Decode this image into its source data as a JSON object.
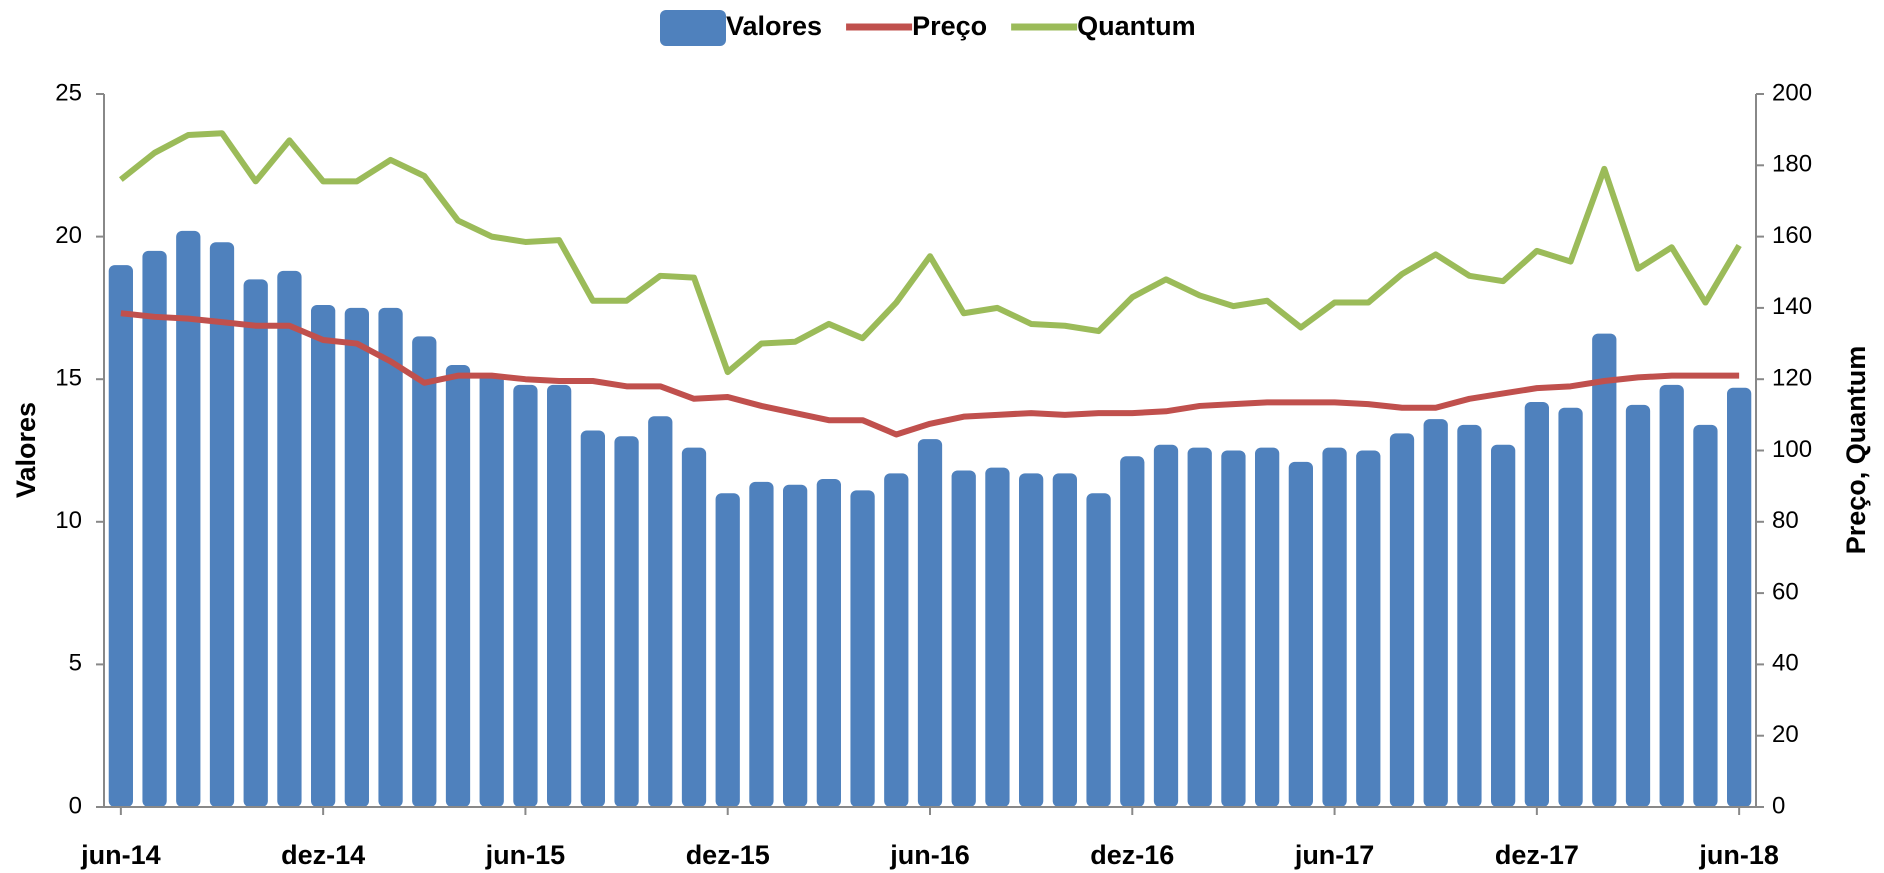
{
  "chart_data": {
    "type": "bar_line",
    "ylabel": "Valores",
    "y2label": "Preço, Quantum",
    "categories": [
      "jun-14",
      null,
      null,
      null,
      null,
      null,
      "dez-14",
      null,
      null,
      null,
      null,
      null,
      "jun-15",
      null,
      null,
      null,
      null,
      null,
      "dez-15",
      null,
      null,
      null,
      null,
      null,
      "jun-16",
      null,
      null,
      null,
      null,
      null,
      "dez-16",
      null,
      null,
      null,
      null,
      null,
      "jun-17",
      null,
      null,
      null,
      null,
      null,
      "dez-17",
      null,
      null,
      null,
      null,
      null,
      "jun-18"
    ],
    "series": [
      {
        "name": "Valores",
        "type": "bar",
        "color": "#4f81bd",
        "axis": "y",
        "values": [
          19.0,
          19.5,
          20.2,
          19.8,
          18.5,
          18.8,
          17.6,
          17.5,
          17.5,
          16.5,
          15.5,
          15.2,
          14.8,
          14.8,
          13.2,
          13.0,
          13.7,
          12.6,
          11.0,
          11.4,
          11.3,
          11.5,
          11.1,
          11.7,
          12.9,
          11.8,
          11.9,
          11.7,
          11.7,
          11.0,
          12.3,
          12.7,
          12.6,
          12.5,
          12.6,
          12.1,
          12.6,
          12.5,
          13.1,
          13.6,
          13.4,
          12.7,
          14.2,
          14.0,
          16.6,
          14.1,
          14.8,
          13.4,
          14.7
        ]
      },
      {
        "name": "Preço",
        "type": "line",
        "color": "#c0504d",
        "axis": "y2",
        "values": [
          138.5,
          137.5,
          137,
          136,
          135,
          135,
          131,
          130,
          125,
          119,
          121,
          121,
          120,
          119.5,
          119.5,
          118,
          118,
          114.5,
          115,
          112.5,
          110.5,
          108.5,
          108.5,
          104.5,
          107.5,
          109.5,
          110,
          110.5,
          110,
          110.5,
          110.5,
          111,
          112.5,
          113,
          113.5,
          113.5,
          113.5,
          113,
          112,
          112,
          114.5,
          116,
          117.5,
          118,
          119.5,
          120.5,
          121,
          121,
          121
        ]
      },
      {
        "name": "Quantum",
        "type": "line",
        "color": "#9bbb59",
        "axis": "y2",
        "values": [
          176,
          183.5,
          188.5,
          189,
          175.5,
          187,
          175.5,
          175.5,
          181.5,
          177,
          164.5,
          160,
          158.5,
          159,
          142,
          142,
          149,
          148.5,
          122,
          130,
          130.5,
          135.5,
          131.5,
          141.5,
          154.5,
          138.5,
          140,
          135.5,
          135,
          133.5,
          143,
          148,
          143.5,
          140.5,
          142,
          134.5,
          141.5,
          141.5,
          149.5,
          155,
          149,
          147.5,
          156,
          153,
          179,
          151,
          157,
          141.5,
          157.5
        ]
      }
    ],
    "ylim": [
      0,
      25
    ],
    "yticks": [
      0,
      5,
      10,
      15,
      20,
      25
    ],
    "y2lim": [
      0,
      200
    ],
    "y2ticks": [
      0,
      20,
      40,
      60,
      80,
      100,
      120,
      140,
      160,
      180,
      200
    ],
    "legend": "top"
  }
}
